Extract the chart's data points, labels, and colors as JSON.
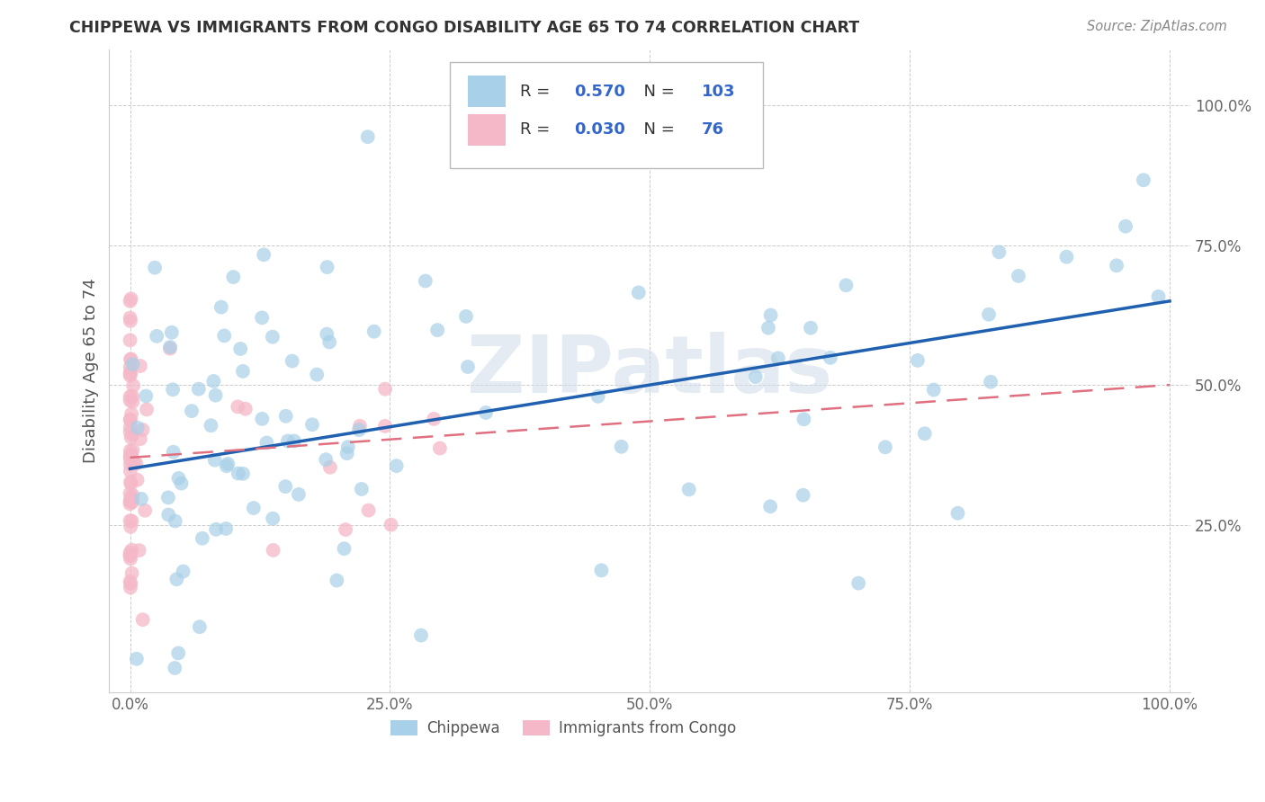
{
  "title": "CHIPPEWA VS IMMIGRANTS FROM CONGO DISABILITY AGE 65 TO 74 CORRELATION CHART",
  "source": "Source: ZipAtlas.com",
  "ylabel": "Disability Age 65 to 74",
  "r_chippewa": 0.57,
  "n_chippewa": 103,
  "r_congo": 0.03,
  "n_congo": 76,
  "color_chippewa": "#a8d0e8",
  "color_congo": "#f5b8c8",
  "color_line_chippewa": "#2060b0",
  "color_line_congo": "#e07080",
  "title_color": "#333333",
  "source_color": "#888888",
  "legend_text_color": "#3366cc",
  "background_color": "#ffffff",
  "watermark_color": "#d0dce8",
  "line_chip_start_y": 0.35,
  "line_chip_end_y": 0.65,
  "line_cng_start_y": 0.37,
  "line_cng_end_y": 0.5,
  "xlim": [
    -0.02,
    1.02
  ],
  "ylim": [
    -0.05,
    1.1
  ],
  "xticks": [
    0.0,
    0.25,
    0.5,
    0.75,
    1.0
  ],
  "yticks": [
    0.25,
    0.5,
    0.75,
    1.0
  ],
  "xtick_labels": [
    "0.0%",
    "25.0%",
    "50.0%",
    "75.0%",
    "100.0%"
  ],
  "ytick_labels": [
    "25.0%",
    "50.0%",
    "75.0%",
    "100.0%"
  ]
}
